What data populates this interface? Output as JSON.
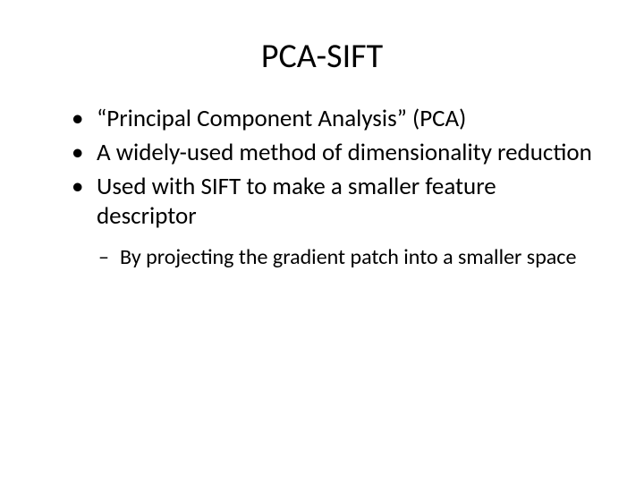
{
  "slide": {
    "title": "PCA-SIFT",
    "bullets": [
      "“Principal Component Analysis” (PCA)",
      "A widely-used method of dimensionality reduction",
      "Used with SIFT to make a smaller feature descriptor"
    ],
    "subbullets": [
      "By projecting the gradient patch into a smaller space"
    ]
  },
  "styling": {
    "background_color": "#ffffff",
    "text_color": "#000000",
    "title_fontsize": 38,
    "bullet_fontsize": 27,
    "sub_fontsize": 24,
    "font_family": "Calibri"
  }
}
